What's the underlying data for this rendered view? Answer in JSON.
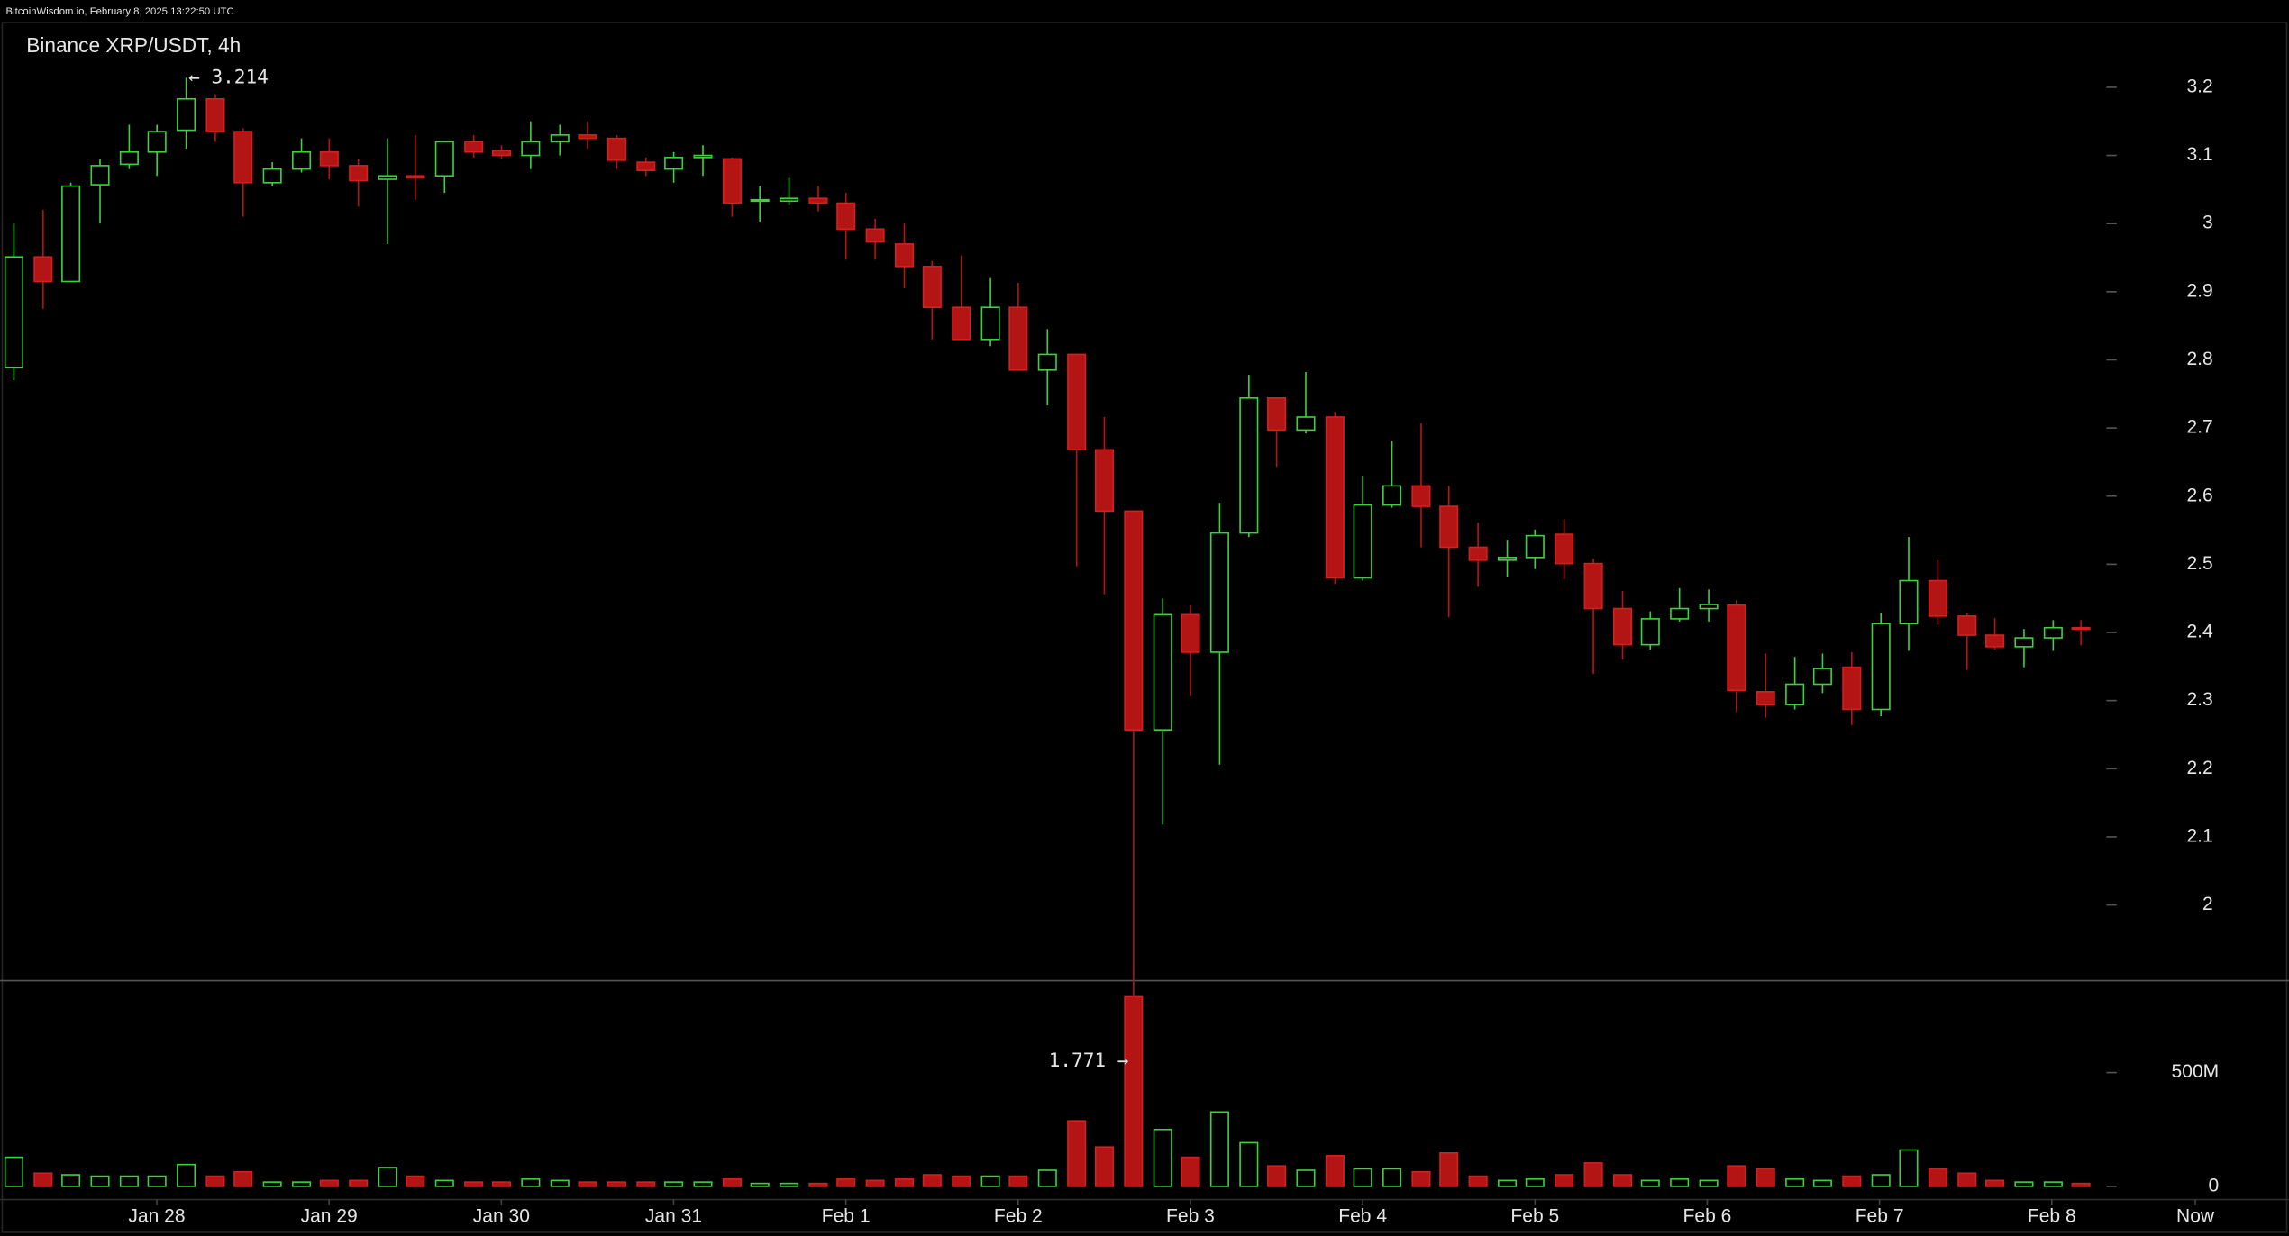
{
  "chart_data": {
    "type": "candlestick",
    "header": "BitcoinWisdom.io, February 8, 2025 13:22:50 UTC",
    "title": "Binance XRP/USDT, 4h",
    "up_color": "#3fcf3f",
    "down_color": "#b31414",
    "xlim": [
      -0.46,
      79.26
    ],
    "xticks": [
      {
        "value": 5,
        "label": "Jan 28"
      },
      {
        "value": 11,
        "label": "Jan 29"
      },
      {
        "value": 17,
        "label": "Jan 30"
      },
      {
        "value": 23,
        "label": "Jan 31"
      },
      {
        "value": 29,
        "label": "Feb 1"
      },
      {
        "value": 35,
        "label": "Feb 2"
      },
      {
        "value": 41,
        "label": "Feb 3"
      },
      {
        "value": 47,
        "label": "Feb 4"
      },
      {
        "value": 53,
        "label": "Feb 5"
      },
      {
        "value": 59,
        "label": "Feb 6"
      },
      {
        "value": 65,
        "label": "Feb 7"
      },
      {
        "value": 71,
        "label": "Feb 8"
      },
      {
        "value": 76,
        "label": "Now"
      }
    ],
    "ylim": [
      1.889,
      3.296
    ],
    "yticks": [
      2,
      2.1,
      2.2,
      2.3,
      2.4,
      2.5,
      2.6,
      2.7,
      2.8,
      2.9,
      3,
      3.1,
      3.2
    ],
    "open": [
      2.789,
      2.951,
      2.915,
      3.057,
      3.087,
      3.105,
      3.137,
      3.183,
      3.135,
      3.06,
      3.08,
      3.105,
      3.085,
      3.065,
      3.07,
      3.07,
      3.12,
      3.107,
      3.1,
      3.12,
      3.13,
      3.125,
      3.09,
      3.08,
      3.097,
      3.095,
      3.033,
      3.033,
      3.037,
      3.03,
      2.992,
      2.97,
      2.937,
      2.877,
      2.83,
      2.877,
      2.785,
      2.808,
      2.668,
      2.578,
      2.257,
      2.426,
      2.371,
      2.546,
      2.744,
      2.697,
      2.716,
      2.48,
      2.587,
      2.615,
      2.585,
      2.525,
      2.506,
      2.51,
      2.544,
      2.501,
      2.435,
      2.382,
      2.42,
      2.435,
      2.44,
      2.313,
      2.294,
      2.324,
      2.349,
      2.287,
      2.413,
      2.476,
      2.424,
      2.396,
      2.379,
      2.392,
      2.407
    ],
    "high": [
      3.0,
      3.02,
      3.06,
      3.095,
      3.145,
      3.145,
      3.214,
      3.19,
      3.14,
      3.09,
      3.125,
      3.125,
      3.095,
      3.125,
      3.13,
      3.12,
      3.13,
      3.115,
      3.15,
      3.145,
      3.15,
      3.13,
      3.097,
      3.105,
      3.115,
      3.097,
      3.055,
      3.067,
      3.055,
      3.045,
      3.007,
      3.0,
      2.945,
      2.953,
      2.92,
      2.913,
      2.845,
      2.808,
      2.716,
      2.578,
      2.45,
      2.44,
      2.59,
      2.778,
      2.744,
      2.782,
      2.724,
      2.63,
      2.681,
      2.707,
      2.615,
      2.561,
      2.536,
      2.551,
      2.566,
      2.508,
      2.461,
      2.431,
      2.465,
      2.463,
      2.447,
      2.369,
      2.364,
      2.369,
      2.371,
      2.429,
      2.54,
      2.506,
      2.429,
      2.421,
      2.405,
      2.418,
      2.418
    ],
    "low": [
      2.77,
      2.875,
      2.915,
      3.0,
      3.08,
      3.07,
      3.11,
      3.12,
      3.01,
      3.055,
      3.075,
      3.065,
      3.025,
      2.97,
      3.035,
      3.045,
      3.097,
      3.095,
      3.08,
      3.1,
      3.11,
      3.08,
      3.07,
      3.06,
      3.07,
      3.01,
      3.003,
      3.027,
      3.018,
      2.947,
      2.947,
      2.905,
      2.83,
      2.83,
      2.82,
      2.785,
      2.733,
      2.497,
      2.456,
      1.771,
      2.118,
      2.306,
      2.206,
      2.54,
      2.643,
      2.692,
      2.471,
      2.476,
      2.583,
      2.525,
      2.422,
      2.467,
      2.482,
      2.493,
      2.478,
      2.339,
      2.36,
      2.375,
      2.416,
      2.416,
      2.283,
      2.275,
      2.287,
      2.311,
      2.264,
      2.277,
      2.373,
      2.411,
      2.345,
      2.375,
      2.349,
      2.373,
      2.381
    ],
    "close": [
      2.951,
      2.915,
      3.055,
      3.085,
      3.105,
      3.135,
      3.183,
      3.135,
      3.06,
      3.08,
      3.105,
      3.085,
      3.063,
      3.07,
      3.067,
      3.12,
      3.105,
      3.1,
      3.12,
      3.13,
      3.125,
      3.093,
      3.078,
      3.097,
      3.1,
      3.03,
      3.035,
      3.037,
      3.03,
      2.992,
      2.973,
      2.937,
      2.877,
      2.83,
      2.877,
      2.785,
      2.808,
      2.668,
      2.578,
      2.257,
      2.426,
      2.371,
      2.546,
      2.744,
      2.697,
      2.716,
      2.48,
      2.587,
      2.615,
      2.585,
      2.525,
      2.506,
      2.51,
      2.542,
      2.501,
      2.435,
      2.382,
      2.42,
      2.435,
      2.441,
      2.315,
      2.294,
      2.324,
      2.347,
      2.287,
      2.413,
      2.476,
      2.424,
      2.396,
      2.379,
      2.392,
      2.407,
      2.405
    ],
    "volume": {
      "values": [
        128,
        58,
        51,
        45,
        45,
        45,
        96,
        45,
        64,
        19,
        19,
        26,
        26,
        83,
        45,
        26,
        19,
        19,
        32,
        26,
        19,
        19,
        19,
        19,
        19,
        32,
        13,
        13,
        13,
        32,
        26,
        32,
        51,
        45,
        45,
        45,
        71,
        288,
        173,
        833,
        250,
        128,
        327,
        192,
        90,
        71,
        135,
        77,
        77,
        64,
        147,
        45,
        26,
        32,
        51,
        103,
        51,
        26,
        32,
        26,
        90,
        77,
        32,
        26,
        45,
        51,
        160,
        77,
        58,
        26,
        19,
        19,
        13
      ],
      "ylim": [
        0,
        904
      ],
      "yticks": [
        0,
        {
          "value": 500,
          "label": "500M"
        }
      ]
    },
    "annotations": {
      "high": "← 3.214",
      "low": "1.771 →"
    }
  }
}
